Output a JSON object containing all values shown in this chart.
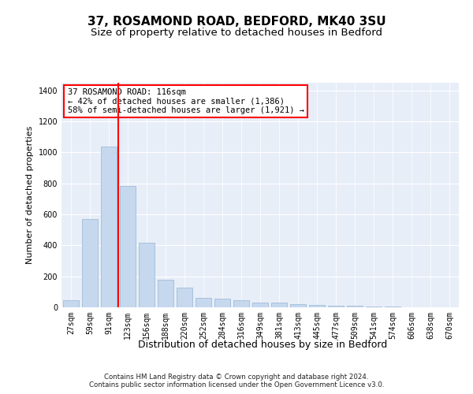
{
  "title_line1": "37, ROSAMOND ROAD, BEDFORD, MK40 3SU",
  "title_line2": "Size of property relative to detached houses in Bedford",
  "xlabel": "Distribution of detached houses by size in Bedford",
  "ylabel": "Number of detached properties",
  "categories": [
    "27sqm",
    "59sqm",
    "91sqm",
    "123sqm",
    "156sqm",
    "188sqm",
    "220sqm",
    "252sqm",
    "284sqm",
    "316sqm",
    "349sqm",
    "381sqm",
    "413sqm",
    "445sqm",
    "477sqm",
    "509sqm",
    "541sqm",
    "574sqm",
    "606sqm",
    "638sqm",
    "670sqm"
  ],
  "values": [
    45,
    572,
    1040,
    785,
    418,
    178,
    128,
    60,
    55,
    45,
    28,
    28,
    20,
    15,
    10,
    8,
    5,
    3,
    2,
    1,
    1
  ],
  "bar_color": "#c5d8ee",
  "bar_edgecolor": "#a0bcd8",
  "vline_color": "red",
  "vline_position": 2.5,
  "annotation_text": "37 ROSAMOND ROAD: 116sqm\n← 42% of detached houses are smaller (1,386)\n58% of semi-detached houses are larger (1,921) →",
  "ylim": [
    0,
    1450
  ],
  "yticks": [
    0,
    200,
    400,
    600,
    800,
    1000,
    1200,
    1400
  ],
  "grid_color": "white",
  "bg_color": "#e8eef8",
  "title_fontsize": 11,
  "subtitle_fontsize": 9.5,
  "xlabel_fontsize": 9,
  "ylabel_fontsize": 8,
  "tick_fontsize": 7,
  "annot_fontsize": 7.5,
  "footer_text": "Contains HM Land Registry data © Crown copyright and database right 2024.\nContains public sector information licensed under the Open Government Licence v3.0."
}
